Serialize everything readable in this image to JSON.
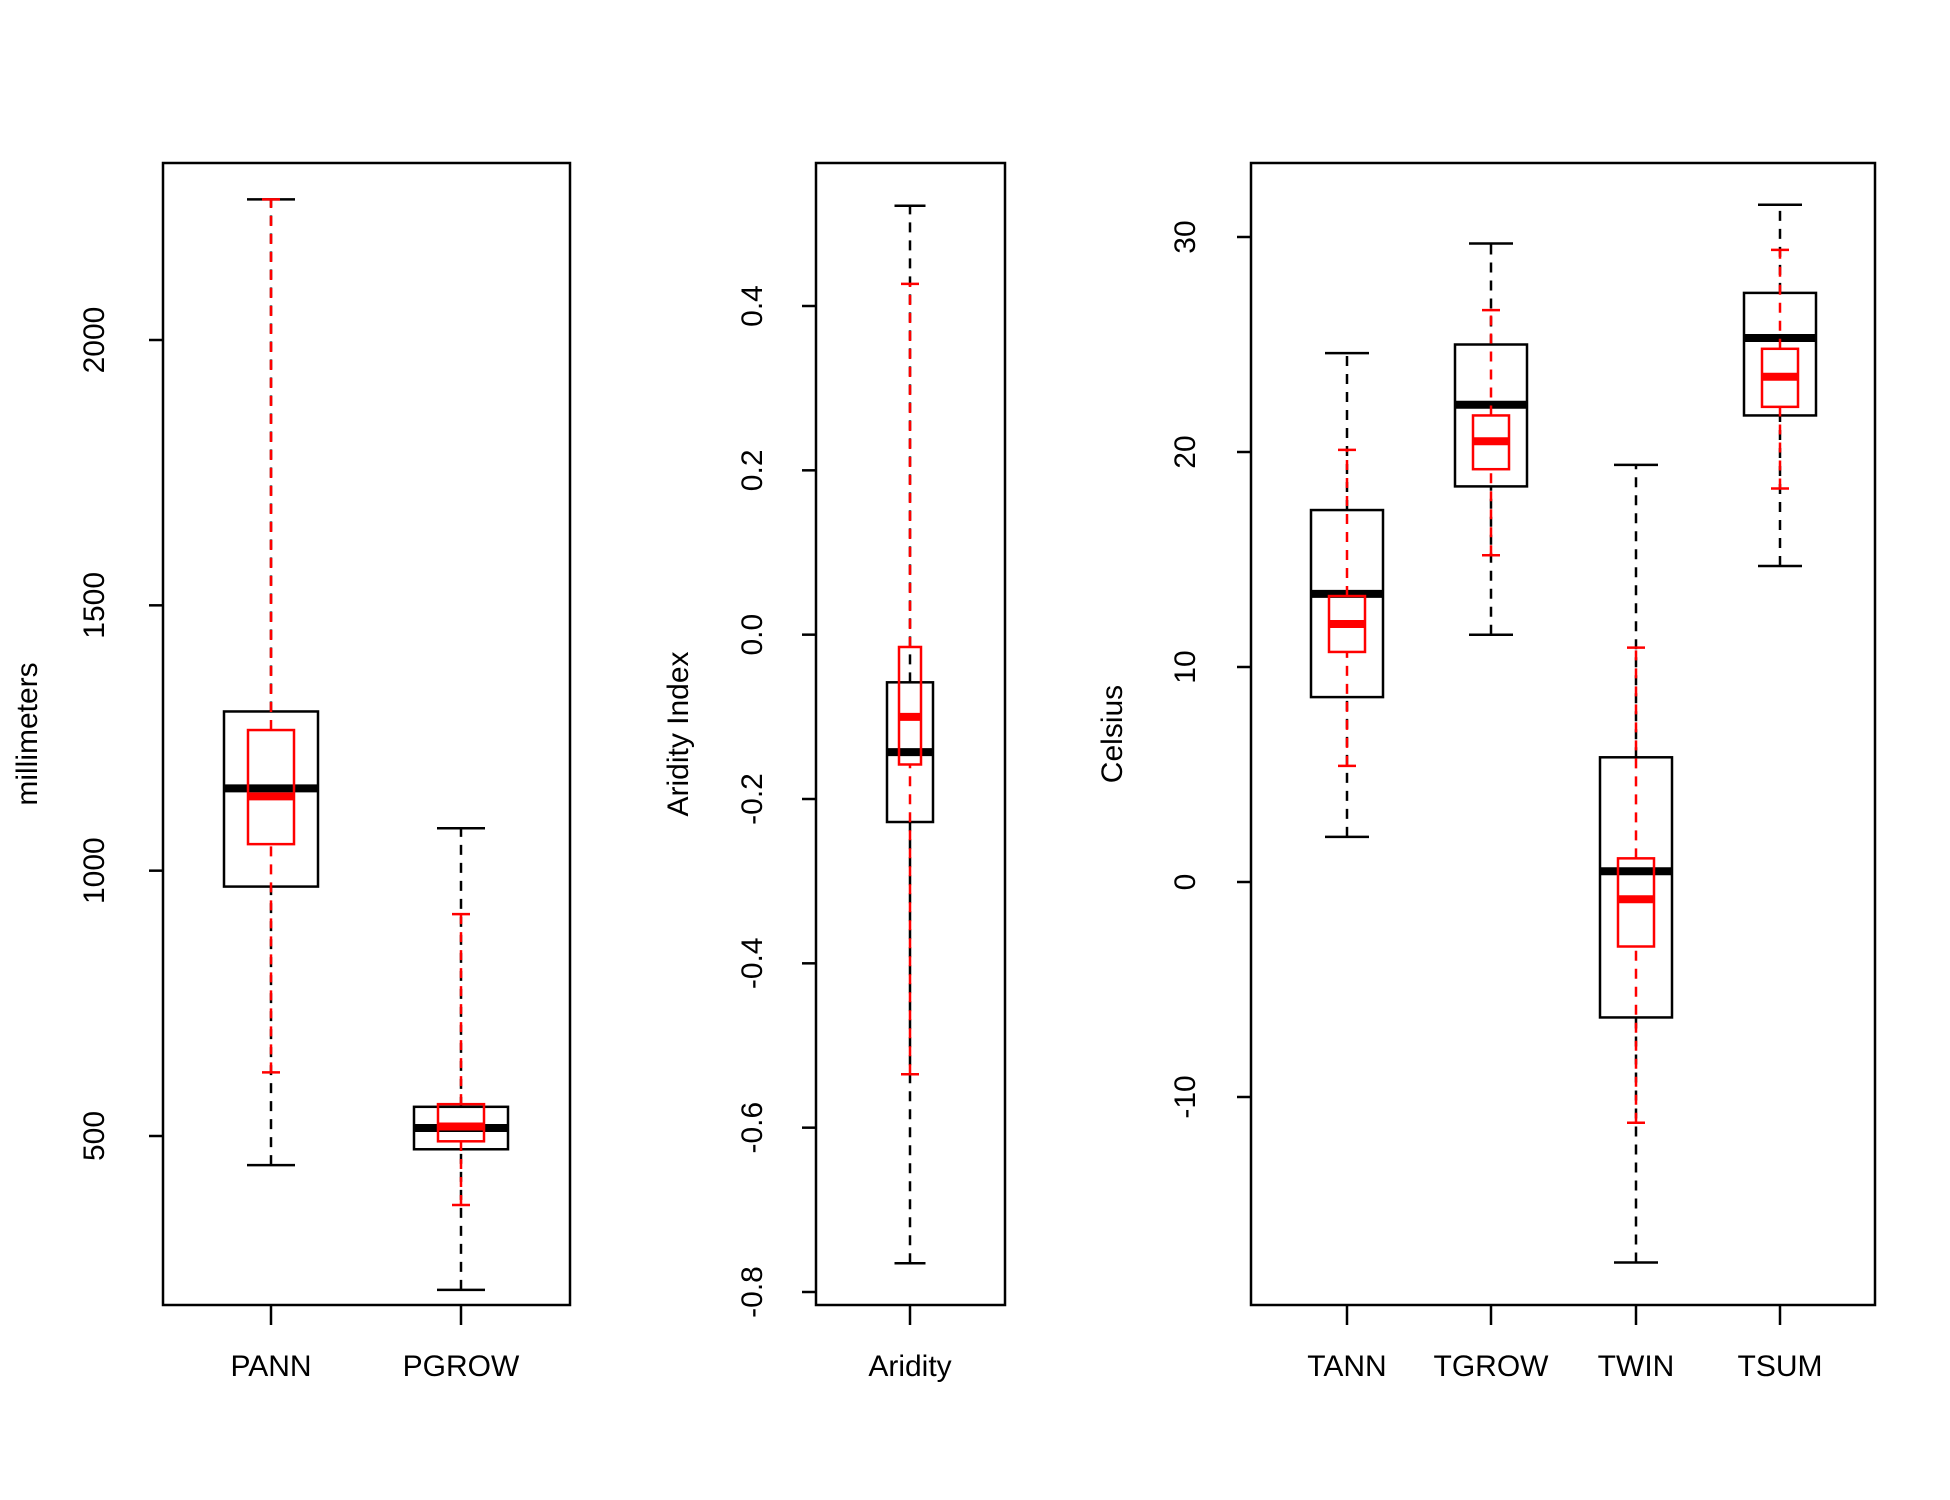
{
  "colors": {
    "black": "#000000",
    "red": "#ff0000"
  },
  "chart_data": [
    {
      "type": "boxplot",
      "title": "",
      "xlabel": "",
      "ylabel": "millimeters",
      "ylim": [
        160,
        2330
      ],
      "yticks": [
        500,
        1000,
        1500,
        2000
      ],
      "ytick_labels": [
        "500",
        "1000",
        "1500",
        "2000"
      ],
      "categories": [
        "PANN",
        "PGROW"
      ],
      "series": [
        {
          "name": "black",
          "color": "#000000",
          "boxes": [
            {
              "lo": 445,
              "q1": 970,
              "med": 1155,
              "q3": 1300,
              "hi": 2265
            },
            {
              "lo": 210,
              "q1": 475,
              "med": 515,
              "q3": 555,
              "hi": 1080
            }
          ]
        },
        {
          "name": "red",
          "color": "#ff0000",
          "boxes": [
            {
              "lo": 620,
              "q1": 1050,
              "med": 1140,
              "q3": 1265,
              "hi": 2265
            },
            {
              "lo": 370,
              "q1": 490,
              "med": 518,
              "q3": 560,
              "hi": 918
            }
          ]
        }
      ]
    },
    {
      "type": "boxplot",
      "title": "",
      "xlabel": "",
      "ylabel": "Aridity Index",
      "ylim": [
        -0.8,
        0.56
      ],
      "yticks": [
        -0.8,
        -0.6,
        -0.4,
        -0.2,
        0.0,
        0.2,
        0.4
      ],
      "ytick_labels": [
        "-0.8",
        "-0.6",
        "-0.4",
        "-0.2",
        "0.0",
        "0.2",
        "0.4"
      ],
      "categories": [
        "Aridity"
      ],
      "series": [
        {
          "name": "black",
          "color": "#000000",
          "boxes": [
            {
              "lo": -0.765,
              "q1": -0.228,
              "med": -0.143,
              "q3": -0.058,
              "hi": 0.522
            }
          ]
        },
        {
          "name": "red",
          "color": "#ff0000",
          "boxes": [
            {
              "lo": -0.535,
              "q1": -0.158,
              "med": -0.1,
              "q3": -0.015,
              "hi": 0.427
            }
          ]
        }
      ]
    },
    {
      "type": "boxplot",
      "title": "",
      "xlabel": "",
      "ylabel": "Celsius",
      "ylim": [
        -19.7,
        33.4
      ],
      "yticks": [
        -10,
        0,
        10,
        20,
        30
      ],
      "ytick_labels": [
        "-10",
        "0",
        "10",
        "20",
        "30"
      ],
      "categories": [
        "TANN",
        "TGROW",
        "TWIN",
        "TSUM"
      ],
      "series": [
        {
          "name": "black",
          "color": "#000000",
          "boxes": [
            {
              "lo": 2.1,
              "q1": 8.6,
              "med": 13.4,
              "q3": 17.3,
              "hi": 24.6
            },
            {
              "lo": 11.5,
              "q1": 18.4,
              "med": 22.2,
              "q3": 25.0,
              "hi": 29.7
            },
            {
              "lo": -17.7,
              "q1": -6.3,
              "med": 0.5,
              "q3": 5.8,
              "hi": 19.4
            },
            {
              "lo": 14.7,
              "q1": 21.7,
              "med": 25.3,
              "q3": 27.4,
              "hi": 31.5
            }
          ]
        },
        {
          "name": "red",
          "color": "#ff0000",
          "boxes": [
            {
              "lo": 5.4,
              "q1": 10.7,
              "med": 12.0,
              "q3": 13.3,
              "hi": 20.1
            },
            {
              "lo": 15.2,
              "q1": 19.2,
              "med": 20.5,
              "q3": 21.7,
              "hi": 26.6
            },
            {
              "lo": -11.2,
              "q1": -3.0,
              "med": -0.8,
              "q3": 1.1,
              "hi": 10.9
            },
            {
              "lo": 18.3,
              "q1": 22.1,
              "med": 23.5,
              "q3": 24.8,
              "hi": 29.4
            }
          ]
        }
      ]
    }
  ]
}
